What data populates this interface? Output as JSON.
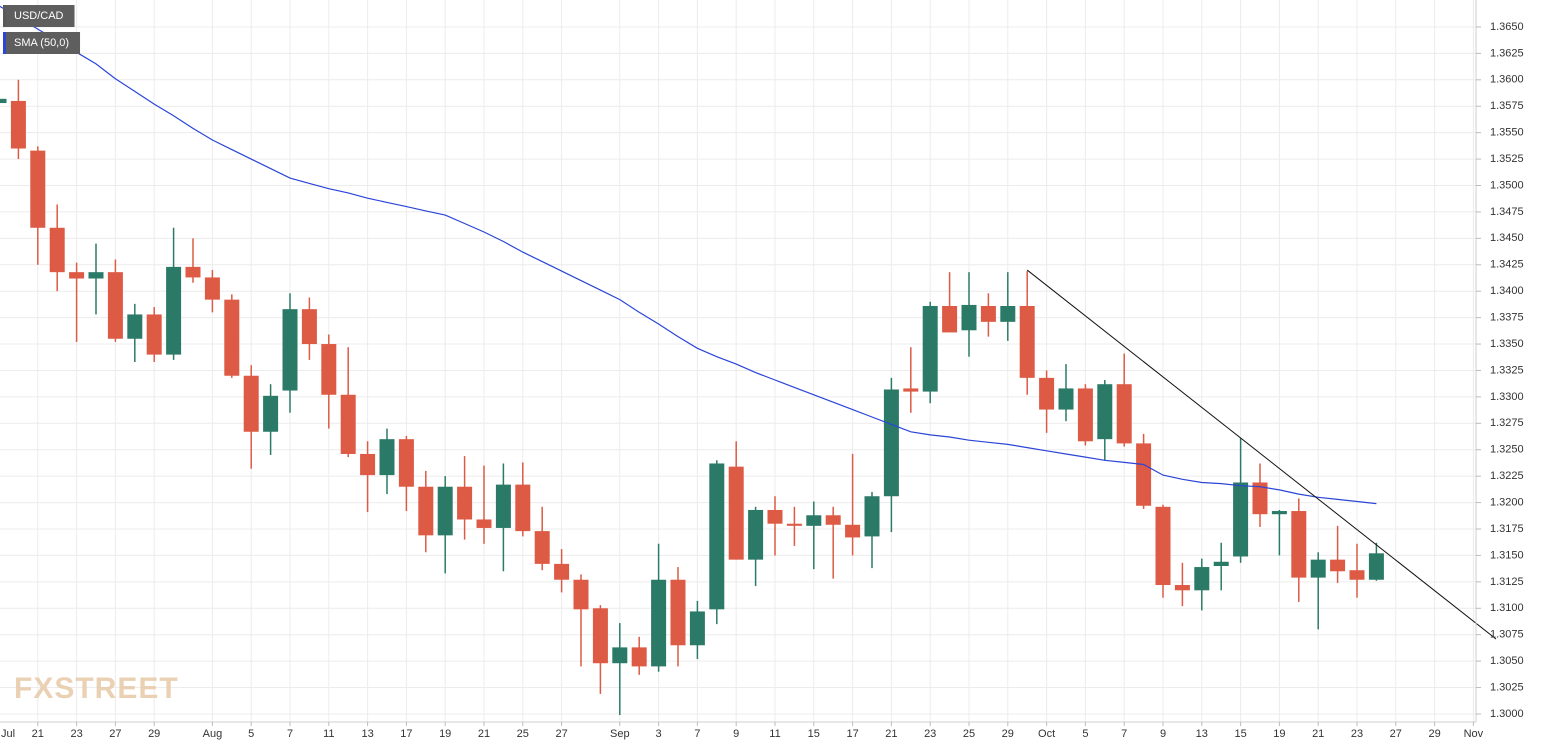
{
  "chart_data": {
    "type": "candlestick",
    "categories": [
      "Jul",
      null,
      "21",
      null,
      "23",
      null,
      "27",
      null,
      "29",
      null,
      null,
      "Aug",
      null,
      "5",
      null,
      "7",
      null,
      "11",
      null,
      "13",
      null,
      "17",
      null,
      "19",
      null,
      "21",
      null,
      "25",
      null,
      "27",
      null,
      null,
      "Sep",
      null,
      "3",
      null,
      "7",
      null,
      "9",
      null,
      "11",
      null,
      "15",
      null,
      "17",
      null,
      "21",
      null,
      "23",
      null,
      "25",
      null,
      "29",
      null,
      "Oct",
      null,
      "5",
      null,
      "7",
      null,
      "9",
      null,
      "13",
      null,
      "15",
      null,
      "19",
      null,
      "21",
      null,
      "23",
      null,
      "27",
      null,
      "29",
      null,
      "Nov"
    ],
    "series": [
      {
        "name": "USD/CAD",
        "type": "candlestick",
        "up_color": "#2b7a67",
        "down_color": "#dd5a45",
        "legend_color": "#5a5a5a",
        "open": [
          1.3578,
          1.358,
          1.3533,
          1.346,
          1.3418,
          1.3412,
          1.3418,
          1.3355,
          1.3378,
          1.334,
          1.3423,
          1.3413,
          1.3392,
          1.332,
          1.3267,
          1.3306,
          1.3383,
          1.335,
          1.3302,
          1.3246,
          1.3226,
          1.326,
          1.3215,
          1.3169,
          1.3215,
          1.3184,
          1.3176,
          1.3217,
          1.3173,
          1.3142,
          1.3127,
          1.31,
          1.3048,
          1.3063,
          1.3045,
          1.3127,
          1.3065,
          1.3099,
          1.3234,
          1.3146,
          1.3193,
          1.318,
          1.3178,
          1.3188,
          1.3179,
          1.3168,
          1.3206,
          1.3308,
          1.3305,
          1.3386,
          1.3363,
          1.3386,
          1.3371,
          1.3386,
          1.3318,
          1.3288,
          1.3308,
          1.326,
          1.3312,
          1.3256,
          1.3196,
          1.3122,
          1.3117,
          1.314,
          1.3149,
          1.3219,
          1.3189,
          1.3192,
          1.3129,
          1.3146,
          1.3136,
          1.3127,
          null,
          null,
          null,
          null,
          null
        ],
        "high": [
          1.359,
          1.36,
          1.3537,
          1.3482,
          1.3427,
          1.3445,
          1.343,
          1.3388,
          1.3385,
          1.346,
          1.345,
          1.342,
          1.3397,
          1.333,
          1.3312,
          1.3398,
          1.3394,
          1.3359,
          1.3347,
          1.3258,
          1.327,
          1.3263,
          1.323,
          1.3225,
          1.3244,
          1.3235,
          1.3237,
          1.3238,
          1.3196,
          1.3156,
          1.3132,
          1.3103,
          1.3086,
          1.3073,
          1.3161,
          1.3139,
          1.3107,
          1.324,
          1.3258,
          1.3196,
          1.3206,
          1.3196,
          1.3201,
          1.3196,
          1.3246,
          1.321,
          1.3318,
          1.3347,
          1.339,
          1.3418,
          1.3418,
          1.3398,
          1.3418,
          1.3419,
          1.3325,
          1.3331,
          1.3312,
          1.3316,
          1.3341,
          1.3265,
          1.3198,
          1.3143,
          1.3147,
          1.3162,
          1.3261,
          1.3237,
          1.3193,
          1.3204,
          1.3153,
          1.3178,
          1.3161,
          1.3162,
          null,
          null,
          null,
          null,
          null
        ],
        "low": [
          1.3575,
          1.3525,
          1.3425,
          1.34,
          1.3352,
          1.3378,
          1.3352,
          1.3333,
          1.3333,
          1.3335,
          1.3408,
          1.338,
          1.3318,
          1.3232,
          1.3245,
          1.3285,
          1.3335,
          1.327,
          1.3243,
          1.3191,
          1.3208,
          1.3192,
          1.3153,
          1.3133,
          1.3165,
          1.3161,
          1.3135,
          1.3168,
          1.3136,
          1.3115,
          1.3045,
          1.3019,
          1.2999,
          1.3037,
          1.304,
          1.3045,
          1.3052,
          1.3085,
          1.3146,
          1.3121,
          1.315,
          1.3159,
          1.3137,
          1.3128,
          1.315,
          1.3138,
          1.3172,
          1.3285,
          1.3294,
          1.3361,
          1.3338,
          1.3357,
          1.3353,
          1.3302,
          1.3266,
          1.3277,
          1.3254,
          1.324,
          1.3253,
          1.3194,
          1.311,
          1.3102,
          1.3098,
          1.3117,
          1.3143,
          1.3177,
          1.315,
          1.3106,
          1.308,
          1.3124,
          1.311,
          1.3126,
          null,
          null,
          null,
          null,
          null
        ],
        "close": [
          1.3582,
          1.3535,
          1.346,
          1.3418,
          1.3412,
          1.3418,
          1.3355,
          1.3378,
          1.334,
          1.3423,
          1.3413,
          1.3392,
          1.332,
          1.3267,
          1.3301,
          1.3383,
          1.335,
          1.3302,
          1.3246,
          1.3226,
          1.326,
          1.3215,
          1.3169,
          1.3215,
          1.3184,
          1.3176,
          1.3217,
          1.3173,
          1.3142,
          1.3127,
          1.3099,
          1.3048,
          1.3063,
          1.3045,
          1.3127,
          1.3065,
          1.3097,
          1.3237,
          1.3146,
          1.3193,
          1.318,
          1.3178,
          1.3188,
          1.3179,
          1.3167,
          1.3206,
          1.3307,
          1.3305,
          1.3386,
          1.3361,
          1.3387,
          1.3371,
          1.3386,
          1.3318,
          1.3288,
          1.3308,
          1.3258,
          1.3312,
          1.3256,
          1.3197,
          1.3122,
          1.3117,
          1.3139,
          1.3144,
          1.3219,
          1.3189,
          1.3192,
          1.3129,
          1.3146,
          1.3135,
          1.3127,
          1.3152,
          null,
          null,
          null,
          null,
          null
        ]
      },
      {
        "name": "SMA (50,0)",
        "type": "line",
        "color": "#2a45d8",
        "values": [
          1.367,
          1.3659,
          1.3648,
          1.3637,
          1.3626,
          1.3615,
          1.3601,
          1.3589,
          1.3577,
          1.3566,
          1.3554,
          1.3543,
          1.3534,
          1.3525,
          1.3516,
          1.3507,
          1.3502,
          1.3497,
          1.3493,
          1.3488,
          1.3484,
          1.348,
          1.3476,
          1.3472,
          1.3464,
          1.3456,
          1.3447,
          1.3437,
          1.3428,
          1.3419,
          1.341,
          1.3401,
          1.3392,
          1.338,
          1.3369,
          1.3357,
          1.3346,
          1.3338,
          1.3331,
          1.3323,
          1.3316,
          1.3309,
          1.3302,
          1.3295,
          1.3288,
          1.3281,
          1.3274,
          1.3267,
          1.3264,
          1.3262,
          1.3259,
          1.3257,
          1.3255,
          1.3252,
          1.3249,
          1.3246,
          1.3243,
          1.324,
          1.3238,
          1.3236,
          1.3226,
          1.3222,
          1.3219,
          1.3218,
          1.3216,
          1.3215,
          1.3212,
          1.3208,
          1.3205,
          1.3203,
          1.3201,
          1.3199,
          null,
          null,
          null,
          null,
          null
        ]
      }
    ],
    "trendline": {
      "color": "#111111",
      "x": [
        53,
        71
      ],
      "y": [
        1.342,
        1.316
      ],
      "extend": true
    },
    "ylim": [
      1.29924,
      1.36755
    ],
    "yticks": [
      {
        "value": 1.3,
        "label": "1.3000"
      },
      1.3025,
      {
        "value": 1.305,
        "label": "1.3050"
      },
      1.3075,
      {
        "value": 1.31,
        "label": "1.3100"
      },
      1.3125,
      {
        "value": 1.315,
        "label": "1.3150"
      },
      1.3175,
      {
        "value": 1.32,
        "label": "1.3200"
      },
      1.3225,
      {
        "value": 1.325,
        "label": "1.3250"
      },
      1.3275,
      {
        "value": 1.33,
        "label": "1.3300"
      },
      1.3325,
      {
        "value": 1.335,
        "label": "1.3350"
      },
      1.3375,
      {
        "value": 1.34,
        "label": "1.3400"
      },
      1.3425,
      {
        "value": 1.345,
        "label": "1.3450"
      },
      1.3475,
      {
        "value": 1.35,
        "label": "1.3500"
      },
      1.3525,
      {
        "value": 1.355,
        "label": "1.3550"
      },
      1.3575,
      {
        "value": 1.36,
        "label": "1.3600"
      },
      1.3625,
      {
        "value": 1.365,
        "label": "1.3650"
      }
    ],
    "grid": true,
    "legend": "top-left",
    "watermark": "FXSTREET"
  }
}
